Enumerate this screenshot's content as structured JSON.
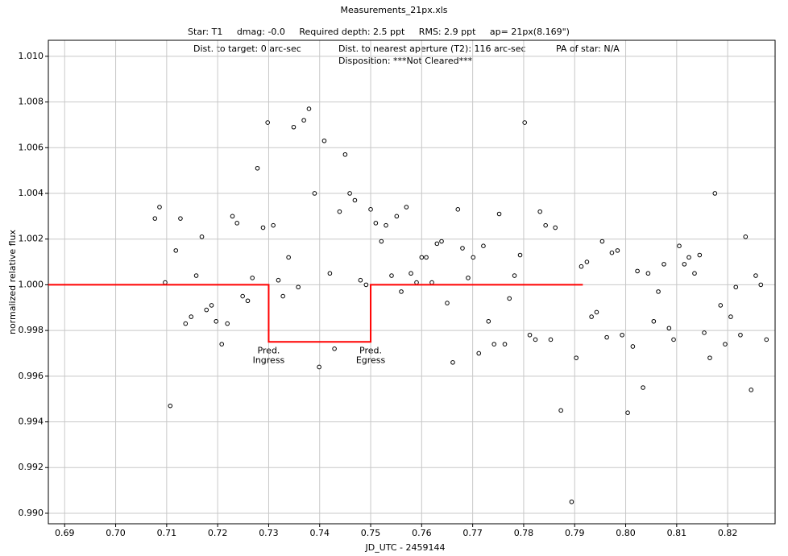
{
  "chart_data": {
    "type": "scatter",
    "title": "Measurements_21px.xls",
    "subtitle": "Star: T1     dmag: -0.0     Required depth: 2.5 ppt     RMS: 2.9 ppt     ap= 21px(8.169\")",
    "info": [
      {
        "text": "Dist. to target: 0 arc-sec",
        "color": "#ff0000"
      },
      {
        "text": "Dist. to nearest aperture (T2): 116 arc-sec",
        "color": "#000000"
      },
      {
        "text": "PA of star: N/A",
        "color": "#000000"
      },
      {
        "text": "Disposition: ***Not Cleared***",
        "color": "#000000"
      }
    ],
    "x_label": "JD_UTC - 2459144",
    "y_label": "normalized relative flux",
    "xlim": [
      0.6868,
      0.8293
    ],
    "ylim": [
      0.98954,
      1.0107
    ],
    "grid": true,
    "xticks": [
      0.69,
      {
        "value": 0.7,
        "label": "0.70"
      },
      0.71,
      0.72,
      0.73,
      0.74,
      0.75,
      0.76,
      0.77,
      0.78,
      0.79,
      {
        "value": 0.8,
        "label": "0.80"
      },
      0.81,
      0.82
    ],
    "yticks": [
      {
        "value": 0.99,
        "label": "0.990"
      },
      {
        "value": 0.992,
        "label": "0.992"
      },
      {
        "value": 0.994,
        "label": "0.994"
      },
      {
        "value": 0.996,
        "label": "0.996"
      },
      {
        "value": 0.998,
        "label": "0.998"
      },
      {
        "value": 1.0,
        "label": "1.000"
      },
      {
        "value": 1.002,
        "label": "1.002"
      },
      {
        "value": 1.004,
        "label": "1.004"
      },
      {
        "value": 1.006,
        "label": "1.006"
      },
      {
        "value": 1.008,
        "label": "1.008"
      },
      {
        "value": 1.01,
        "label": "1.010"
      }
    ],
    "series": [
      {
        "type": "scatter",
        "color": "#000000",
        "x": [
          0.7077,
          0.7086,
          0.7097,
          0.7107,
          0.7118,
          0.7127,
          0.7137,
          0.7148,
          0.7158,
          0.7169,
          0.7178,
          0.7188,
          0.7197,
          0.7208,
          0.7219,
          0.7229,
          0.7238,
          0.7249,
          0.7259,
          0.7268,
          0.7278,
          0.7289,
          0.7298,
          0.7309,
          0.7319,
          0.7328,
          0.7339,
          0.7349,
          0.7358,
          0.7369,
          0.7379,
          0.739,
          0.7399,
          0.7409,
          0.742,
          0.7429,
          0.7439,
          0.745,
          0.7459,
          0.7469,
          0.748,
          0.7491,
          0.75,
          0.751,
          0.7521,
          0.753,
          0.7541,
          0.7551,
          0.756,
          0.757,
          0.7579,
          0.759,
          0.76,
          0.7609,
          0.762,
          0.763,
          0.7639,
          0.765,
          0.7661,
          0.7671,
          0.768,
          0.7691,
          0.7701,
          0.7712,
          0.7721,
          0.7731,
          0.7742,
          0.7752,
          0.7763,
          0.7772,
          0.7782,
          0.7793,
          0.7802,
          0.7812,
          0.7823,
          0.7832,
          0.7843,
          0.7853,
          0.7862,
          0.7873,
          0.7894,
          0.7903,
          0.7913,
          0.7924,
          0.7933,
          0.7943,
          0.7954,
          0.7963,
          0.7973,
          0.7984,
          0.7993,
          0.8004,
          0.8014,
          0.8023,
          0.8034,
          0.8044,
          0.8055,
          0.8064,
          0.8075,
          0.8085,
          0.8094,
          0.8105,
          0.8115,
          0.8124,
          0.8135,
          0.8145,
          0.8154,
          0.8165,
          0.8175,
          0.8186,
          0.8195,
          0.8206,
          0.8216,
          0.8225,
          0.8235,
          0.8246,
          0.8255,
          0.8265,
          0.8276
        ],
        "values": [
          1.0029,
          1.0034,
          1.0001,
          0.9947,
          1.0015,
          1.0029,
          0.9983,
          0.9986,
          1.0004,
          1.0021,
          0.9989,
          0.9991,
          0.9984,
          0.9974,
          0.9983,
          1.003,
          1.0027,
          0.9995,
          0.9993,
          1.0003,
          1.0051,
          1.0025,
          1.0071,
          1.0026,
          1.0002,
          0.9995,
          1.0012,
          1.0069,
          0.9999,
          1.0072,
          1.0077,
          1.004,
          0.9964,
          1.0063,
          1.0005,
          0.9972,
          1.0032,
          1.0057,
          1.004,
          1.0037,
          1.0002,
          1.0,
          1.0033,
          1.0027,
          1.0019,
          1.0026,
          1.0004,
          1.003,
          0.9997,
          1.0034,
          1.0005,
          1.0001,
          1.0012,
          1.0012,
          1.0001,
          1.0018,
          1.0019,
          0.9992,
          0.9966,
          1.0033,
          1.0016,
          1.0003,
          1.0012,
          0.997,
          1.0017,
          0.9984,
          0.9974,
          1.0031,
          0.9974,
          0.9994,
          1.0004,
          1.0013,
          1.0071,
          0.9978,
          0.9976,
          1.0032,
          1.0026,
          0.9976,
          1.0025,
          0.9945,
          0.9905,
          0.9968,
          1.0008,
          1.001,
          0.9986,
          0.9988,
          1.0019,
          0.9977,
          1.0014,
          1.0015,
          0.9978,
          0.9944,
          0.9973,
          1.0006,
          0.9955,
          1.0005,
          0.9984,
          0.9997,
          1.0009,
          0.9981,
          0.9976,
          1.0017,
          1.0009,
          1.0012,
          1.0005,
          1.0013,
          0.9979,
          0.9968,
          1.004,
          0.9991,
          0.9974,
          0.9986,
          0.9999,
          0.9978,
          1.0021,
          0.9954,
          1.0004,
          1.0,
          0.9976
        ]
      },
      {
        "type": "line",
        "color": "#ff0000",
        "x": [
          0.6868,
          0.73,
          0.73,
          0.75,
          0.75,
          0.7916
        ],
        "values": [
          1.0,
          1.0,
          0.9975,
          0.9975,
          1.0,
          1.0
        ]
      }
    ],
    "annotations": [
      {
        "lines": [
          "Pred.",
          "Ingress"
        ],
        "x": 0.73,
        "y": 0.9971,
        "color": "#0000cc"
      },
      {
        "lines": [
          "Pred.",
          "Egress"
        ],
        "x": 0.75,
        "y": 0.9971,
        "color": "#0000cc"
      }
    ]
  }
}
